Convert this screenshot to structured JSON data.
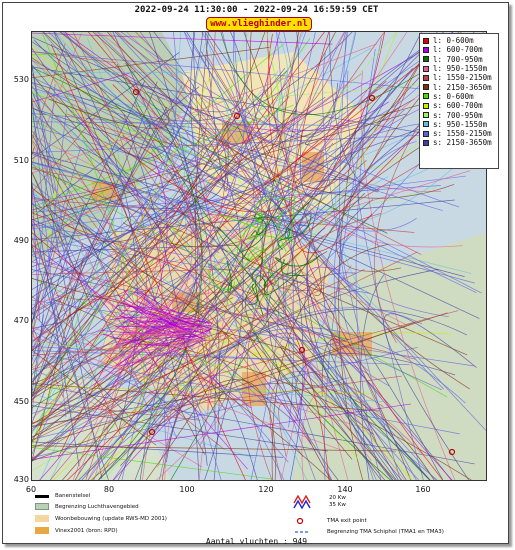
{
  "title": "2022-09-24 11:30:00 - 2022-09-24 16:59:59 CET",
  "brand": "www.vlieghinder.nl",
  "axes": {
    "y_ticks": [
      "530",
      "510",
      "490",
      "470",
      "450",
      "430"
    ],
    "x_ticks": [
      "60",
      "80",
      "100",
      "120",
      "140",
      "160"
    ]
  },
  "legend": [
    {
      "label": "l: 0-600m",
      "color": "#e00000"
    },
    {
      "label": "l: 600-700m",
      "color": "#b000e0"
    },
    {
      "label": "l: 700-950m",
      "color": "#007000"
    },
    {
      "label": "l: 950-1550m",
      "color": "#e06090"
    },
    {
      "label": "l: 1550-2150m",
      "color": "#c04040"
    },
    {
      "label": "l: 2150-3650m",
      "color": "#803010"
    },
    {
      "label": "s: 0-600m",
      "color": "#40e000"
    },
    {
      "label": "s: 600-700m",
      "color": "#c0f000"
    },
    {
      "label": "s: 700-950m",
      "color": "#a0f060"
    },
    {
      "label": "s: 950-1550m",
      "color": "#60c0e0"
    },
    {
      "label": "s: 1550-2150m",
      "color": "#6060e0"
    },
    {
      "label": "s: 2150-3650m",
      "color": "#4040a0"
    }
  ],
  "map_legend": {
    "runway": "Banenstelsel",
    "airport_boundary": "Begrenzing Luchthavengebied",
    "residential": "Woonbebouwing (update RWS-MD 2001)",
    "vinex": "Vinex2001 (bron: RPD)",
    "wind_a": "20 Kw",
    "wind_b": "35 Kw",
    "tma_exit": "TMA exit point",
    "tma_boundary": "Begrenzing TMA Schiphol  (TMA1 en TMA3)"
  },
  "count_label": "Aantal vluchten : 949"
}
